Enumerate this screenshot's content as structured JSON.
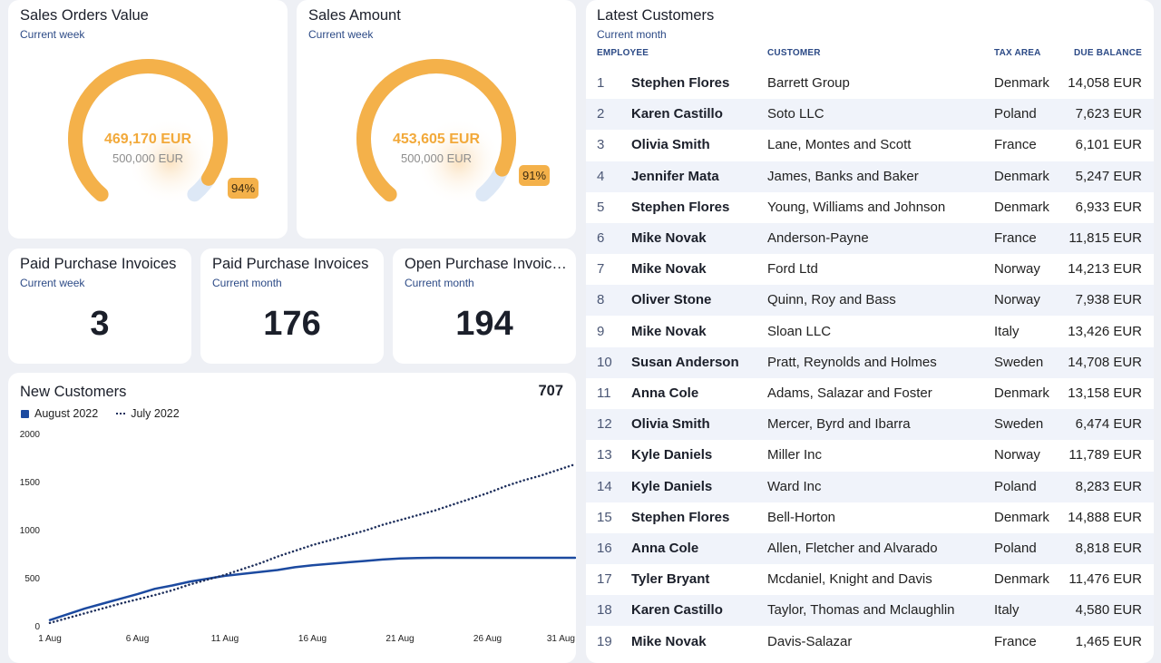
{
  "gauges": [
    {
      "title": "Sales Orders Value",
      "subtitle": "Current week",
      "value": "469,170 EUR",
      "target": "500,000 EUR",
      "percent_label": "94%",
      "fraction": 0.94
    },
    {
      "title": "Sales Amount",
      "subtitle": "Current week",
      "value": "453,605 EUR",
      "target": "500,000 EUR",
      "percent_label": "91%",
      "fraction": 0.91
    }
  ],
  "kpis": [
    {
      "title": "Paid Purchase Invoices",
      "subtitle": "Current week",
      "value": "3"
    },
    {
      "title": "Paid Purchase Invoices",
      "subtitle": "Current month",
      "value": "176"
    },
    {
      "title": "Open Purchase Invoic…",
      "subtitle": "Current month",
      "value": "194"
    }
  ],
  "new_customers": {
    "title": "New Customers",
    "total": "707",
    "legend_current": "August 2022",
    "legend_previous": "July 2022"
  },
  "chart_data": {
    "type": "line",
    "title": "New Customers",
    "x_ticks": [
      "1 Aug",
      "6 Aug",
      "11 Aug",
      "16 Aug",
      "21 Aug",
      "26 Aug",
      "31 Aug"
    ],
    "y_ticks": [
      "0",
      "500",
      "1000",
      "1500",
      "2000"
    ],
    "ylim": [
      0,
      2000
    ],
    "xlim": [
      1,
      31
    ],
    "series": [
      {
        "name": "August 2022",
        "style": "solid",
        "color": "#1c4aa0",
        "x": [
          1,
          2,
          3,
          4,
          5,
          6,
          7,
          8,
          9,
          10,
          11,
          12,
          13,
          14,
          15,
          16,
          17,
          18,
          19,
          20,
          21,
          22,
          23,
          24,
          25,
          26,
          27,
          28,
          29,
          30,
          31
        ],
        "y": [
          60,
          120,
          180,
          230,
          280,
          330,
          385,
          420,
          460,
          490,
          520,
          540,
          560,
          580,
          610,
          630,
          645,
          660,
          675,
          690,
          700,
          705,
          707,
          707,
          707,
          707,
          707,
          707,
          707,
          707,
          707
        ]
      },
      {
        "name": "July 2022",
        "style": "dotted",
        "color": "#1e2f5c",
        "x": [
          1,
          2,
          3,
          4,
          5,
          6,
          7,
          8,
          9,
          10,
          11,
          12,
          13,
          14,
          15,
          16,
          17,
          18,
          19,
          20,
          21,
          22,
          23,
          24,
          25,
          26,
          27,
          28,
          29,
          30,
          31
        ],
        "y": [
          30,
          80,
          130,
          180,
          230,
          275,
          320,
          370,
          430,
          480,
          530,
          590,
          650,
          720,
          780,
          840,
          890,
          940,
          990,
          1050,
          1100,
          1150,
          1200,
          1260,
          1320,
          1380,
          1450,
          1510,
          1560,
          1620,
          1680
        ]
      }
    ]
  },
  "customers": {
    "title": "Latest Customers",
    "subtitle": "Current month",
    "headers": {
      "employee": "EMPLOYEE",
      "customer": "CUSTOMER",
      "tax_area": "TAX AREA",
      "due_balance": "DUE BALANCE"
    },
    "rows": [
      {
        "n": "1",
        "employee": "Stephen Flores",
        "customer": "Barrett Group",
        "tax": "Denmark",
        "due": "14,058 EUR"
      },
      {
        "n": "2",
        "employee": "Karen Castillo",
        "customer": "Soto LLC",
        "tax": "Poland",
        "due": "7,623 EUR"
      },
      {
        "n": "3",
        "employee": "Olivia Smith",
        "customer": "Lane, Montes and Scott",
        "tax": "France",
        "due": "6,101 EUR"
      },
      {
        "n": "4",
        "employee": "Jennifer Mata",
        "customer": "James, Banks and Baker",
        "tax": "Denmark",
        "due": "5,247 EUR"
      },
      {
        "n": "5",
        "employee": "Stephen Flores",
        "customer": "Young, Williams and Johnson",
        "tax": "Denmark",
        "due": "6,933 EUR"
      },
      {
        "n": "6",
        "employee": "Mike Novak",
        "customer": "Anderson-Payne",
        "tax": "France",
        "due": "11,815 EUR"
      },
      {
        "n": "7",
        "employee": "Mike Novak",
        "customer": "Ford Ltd",
        "tax": "Norway",
        "due": "14,213 EUR"
      },
      {
        "n": "8",
        "employee": "Oliver Stone",
        "customer": "Quinn, Roy and Bass",
        "tax": "Norway",
        "due": "7,938 EUR"
      },
      {
        "n": "9",
        "employee": "Mike Novak",
        "customer": "Sloan LLC",
        "tax": "Italy",
        "due": "13,426 EUR"
      },
      {
        "n": "10",
        "employee": "Susan Anderson",
        "customer": "Pratt, Reynolds and Holmes",
        "tax": "Sweden",
        "due": "14,708 EUR"
      },
      {
        "n": "11",
        "employee": "Anna Cole",
        "customer": "Adams, Salazar and Foster",
        "tax": "Denmark",
        "due": "13,158 EUR"
      },
      {
        "n": "12",
        "employee": "Olivia Smith",
        "customer": "Mercer, Byrd and Ibarra",
        "tax": "Sweden",
        "due": "6,474 EUR"
      },
      {
        "n": "13",
        "employee": "Kyle Daniels",
        "customer": "Miller Inc",
        "tax": "Norway",
        "due": "11,789 EUR"
      },
      {
        "n": "14",
        "employee": "Kyle Daniels",
        "customer": "Ward Inc",
        "tax": "Poland",
        "due": "8,283 EUR"
      },
      {
        "n": "15",
        "employee": "Stephen Flores",
        "customer": "Bell-Horton",
        "tax": "Denmark",
        "due": "14,888 EUR"
      },
      {
        "n": "16",
        "employee": "Anna Cole",
        "customer": "Allen, Fletcher and Alvarado",
        "tax": "Poland",
        "due": "8,818 EUR"
      },
      {
        "n": "17",
        "employee": "Tyler Bryant",
        "customer": "Mcdaniel, Knight and Davis",
        "tax": "Denmark",
        "due": "11,476 EUR"
      },
      {
        "n": "18",
        "employee": "Karen Castillo",
        "customer": "Taylor, Thomas and Mclaughlin",
        "tax": "Italy",
        "due": "4,580 EUR"
      },
      {
        "n": "19",
        "employee": "Mike Novak",
        "customer": "Davis-Salazar",
        "tax": "France",
        "due": "1,465 EUR"
      }
    ]
  }
}
